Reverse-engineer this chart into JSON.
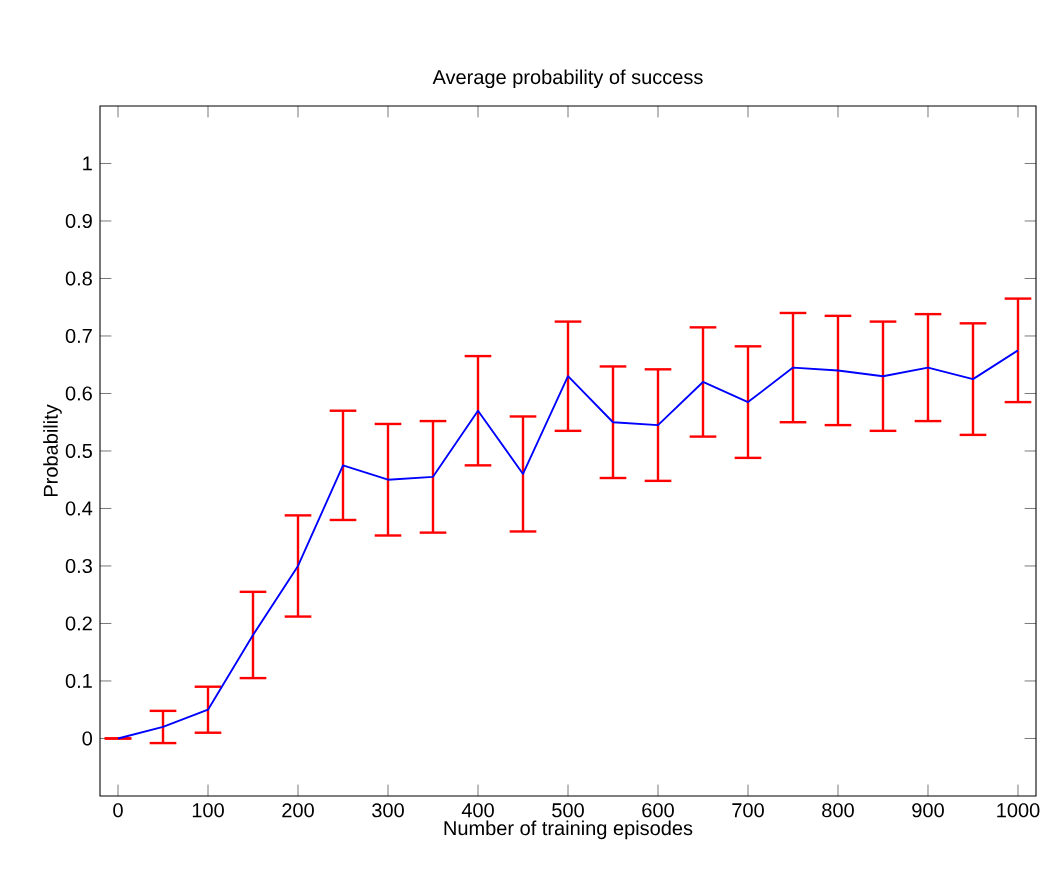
{
  "chart_data": {
    "type": "line",
    "title": "Average probability of success",
    "xlabel": "Number of training episodes",
    "ylabel": "Probability",
    "x": [
      0,
      50,
      100,
      150,
      200,
      250,
      300,
      350,
      400,
      450,
      500,
      550,
      600,
      650,
      700,
      750,
      800,
      850,
      900,
      950,
      1000
    ],
    "series": [
      {
        "color": "#0000ff",
        "values": [
          0,
          0.02,
          0.05,
          0.18,
          0.3,
          0.475,
          0.45,
          0.455,
          0.57,
          0.46,
          0.63,
          0.55,
          0.545,
          0.62,
          0.585,
          0.645,
          0.64,
          0.63,
          0.645,
          0.625,
          0.675
        ],
        "errors": [
          0,
          0.028,
          0.04,
          0.075,
          0.088,
          0.095,
          0.097,
          0.097,
          0.095,
          0.1,
          0.095,
          0.097,
          0.097,
          0.095,
          0.097,
          0.095,
          0.095,
          0.095,
          0.093,
          0.097,
          0.09
        ]
      }
    ],
    "xlim": [
      -20,
      1020
    ],
    "ylim": [
      -0.1,
      1.1
    ],
    "xticks": [
      0,
      100,
      200,
      300,
      400,
      500,
      600,
      700,
      800,
      900,
      1000
    ],
    "yticks": [
      0,
      0.1,
      0.2,
      0.3,
      0.4,
      0.5,
      0.6,
      0.7,
      0.8,
      0.9,
      1
    ],
    "grid": false,
    "marker": "none",
    "line_style": "solid"
  }
}
